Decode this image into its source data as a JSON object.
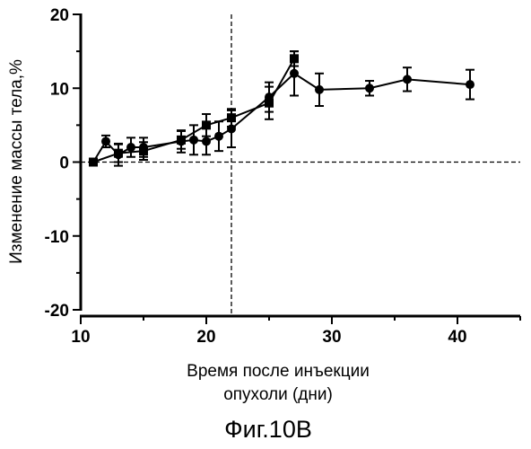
{
  "chart_data": {
    "type": "line",
    "xlabel_lines": [
      "Время после инъекции",
      "опухоли (дни)"
    ],
    "ylabel": "Изменение массы тела,%",
    "caption": "Фиг.10В",
    "xlim": [
      10,
      45
    ],
    "ylim": [
      -20,
      20
    ],
    "xticks": [
      10,
      20,
      30,
      40
    ],
    "yticks": [
      20,
      10,
      0,
      -10,
      -20
    ],
    "reference_lines": {
      "x": 22,
      "y": 0,
      "style": "dashed"
    },
    "grid": false,
    "series": [
      {
        "marker": "square",
        "x": [
          11,
          13,
          15,
          18,
          20,
          22,
          25,
          27
        ],
        "y": [
          0,
          1.2,
          1.5,
          3.0,
          5.0,
          6.0,
          8.0,
          14.0
        ],
        "err": [
          0.3,
          1.2,
          1.2,
          1.2,
          1.5,
          1.2,
          2.2,
          1.0
        ]
      },
      {
        "marker": "circle",
        "x": [
          11,
          12,
          13,
          14,
          15,
          18,
          19,
          20,
          21,
          22,
          25,
          27,
          29,
          33,
          36,
          41
        ],
        "y": [
          0,
          2.8,
          1.0,
          2.0,
          2.0,
          2.8,
          3.0,
          2.8,
          3.5,
          4.5,
          8.8,
          12.0,
          9.8,
          10.0,
          11.2,
          10.5
        ],
        "err": [
          0.3,
          0.8,
          1.5,
          1.3,
          1.3,
          1.5,
          2.0,
          1.8,
          2.0,
          2.5,
          2.0,
          3.0,
          2.2,
          1.0,
          1.6,
          2.0
        ]
      }
    ]
  }
}
